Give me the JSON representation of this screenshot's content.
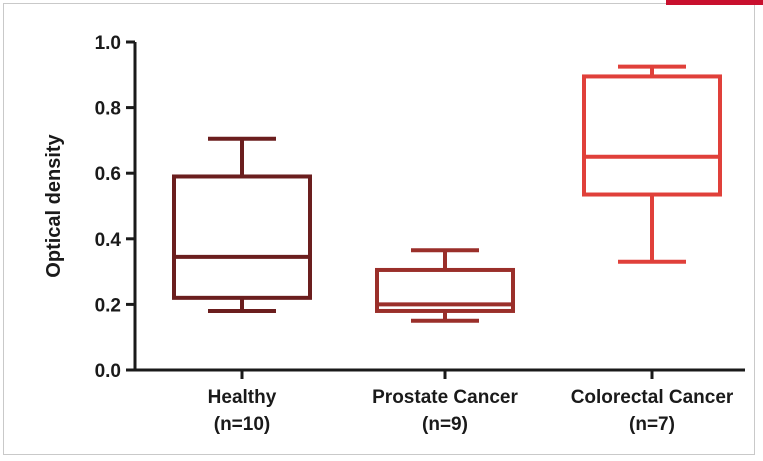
{
  "chart_data": {
    "type": "box",
    "title": "",
    "xlabel": "",
    "ylabel": "Optical density",
    "ylim": [
      0.0,
      1.0
    ],
    "yticks": [
      "0.0",
      "0.2",
      "0.4",
      "0.6",
      "0.8",
      "1.0"
    ],
    "grid": false,
    "legend": "none",
    "categories": [
      {
        "name": "Healthy",
        "n_label": "(n=10)",
        "color": "#6b1e1e",
        "min": 0.18,
        "q1": 0.22,
        "median": 0.345,
        "q3": 0.59,
        "max": 0.705
      },
      {
        "name": "Prostate Cancer",
        "n_label": "(n=9)",
        "color": "#9a2f2a",
        "min": 0.15,
        "q1": 0.18,
        "median": 0.2,
        "q3": 0.305,
        "max": 0.365
      },
      {
        "name": "Colorectal Cancer",
        "n_label": "(n=7)",
        "color": "#e0403a",
        "min": 0.33,
        "q1": 0.535,
        "median": 0.65,
        "q3": 0.895,
        "max": 0.925
      }
    ]
  },
  "decor": {
    "corner_tab_color": "#c8102e",
    "frame_color": "#c9c9c9",
    "axis_color": "#1a1a1a"
  }
}
